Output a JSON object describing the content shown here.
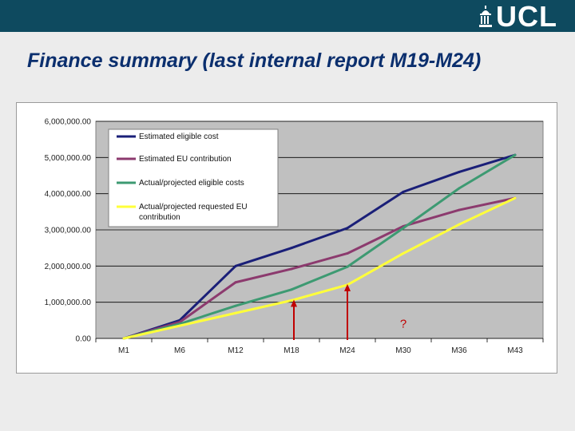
{
  "slide": {
    "title": "Finance summary (last internal report M19-M24)",
    "logo_text": "UCL",
    "header_color": "#0e4a5f"
  },
  "chart_data": {
    "type": "line",
    "categories": [
      "M1",
      "M6",
      "M12",
      "M18",
      "M24",
      "M30",
      "M36",
      "M43"
    ],
    "ylim": [
      0,
      6000000
    ],
    "yticks": [
      0,
      1000000,
      2000000,
      3000000,
      4000000,
      5000000,
      6000000
    ],
    "ytick_labels": [
      "0.00",
      "1,000,000.00",
      "2,000,000.00",
      "3,000,000.00",
      "4,000,000.00",
      "5,000,000.00",
      "6,000,000.00"
    ],
    "grid": true,
    "plot_background": "#c0c0c0",
    "legend_position": "top-left",
    "series": [
      {
        "name": "Estimated eligible cost",
        "color": "#1a1f78",
        "values": [
          0,
          500000,
          2000000,
          2500000,
          3050000,
          4050000,
          4600000,
          5070000
        ]
      },
      {
        "name": "Estimated EU contribution",
        "color": "#8c3a6e",
        "values": [
          0,
          450000,
          1550000,
          1920000,
          2350000,
          3100000,
          3550000,
          3880000
        ]
      },
      {
        "name": "Actual/projected eligible costs",
        "color": "#3d9a72",
        "values": [
          0,
          400000,
          900000,
          1350000,
          1980000,
          3050000,
          4150000,
          5070000
        ]
      },
      {
        "name": "Actual/projected requested EU contribution",
        "color": "#ffff3a",
        "values": [
          0,
          350000,
          700000,
          1050000,
          1480000,
          2350000,
          3150000,
          3880000
        ]
      }
    ],
    "annotations": [
      {
        "type": "arrow",
        "x": "M18",
        "y_tip": 1050000,
        "color": "#c00000"
      },
      {
        "type": "arrow",
        "x": "M24",
        "y_tip": 1480000,
        "color": "#c00000"
      },
      {
        "type": "text",
        "text": "?",
        "x": 5.0,
        "y": 300000,
        "color": "#c00000"
      }
    ]
  }
}
